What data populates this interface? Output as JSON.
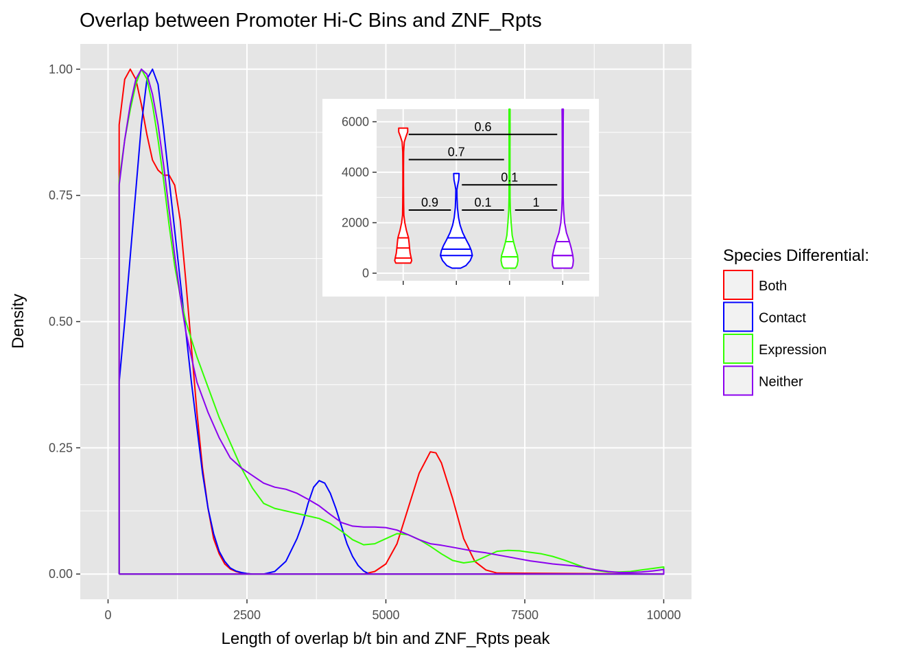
{
  "colors": {
    "Both": "#ff0000",
    "Contact": "#0000ff",
    "Expression": "#33ff00",
    "Neither": "#8b00ee",
    "panel_bg": "#e5e5e5",
    "grid": "#ffffff"
  },
  "chart_data": [
    {
      "type": "line",
      "title": "Overlap between Promoter Hi-C Bins and ZNF_Rpts",
      "xlabel": "Length of overlap b/t bin and ZNF_Rpts peak",
      "ylabel": "Density",
      "xlim": [
        -500,
        10500
      ],
      "ylim": [
        -0.05,
        1.05
      ],
      "x_ticks": [
        0,
        2500,
        5000,
        7500,
        10000
      ],
      "x_tick_labels": [
        "0",
        "2500",
        "5000",
        "7500",
        "10000"
      ],
      "y_ticks": [
        0,
        0.25,
        0.5,
        0.75,
        1.0
      ],
      "y_tick_labels": [
        "0.00",
        "0.25",
        "0.50",
        "0.75",
        "1.00"
      ],
      "grid": true,
      "legend": {
        "title": "Species Differential:",
        "position": "right",
        "entries": [
          "Both",
          "Contact",
          "Expression",
          "Neither"
        ]
      },
      "series": [
        {
          "name": "Both",
          "x": [
            200,
            200,
            300,
            400,
            500,
            600,
            700,
            800,
            900,
            1000,
            1100,
            1200,
            1300,
            1400,
            1500,
            1600,
            1700,
            1800,
            1900,
            2000,
            2100,
            2200,
            2300,
            2400,
            2600,
            2800,
            3000,
            4000,
            4600,
            4800,
            5000,
            5200,
            5400,
            5600,
            5800,
            5900,
            6000,
            6200,
            6400,
            6600,
            6800,
            7000,
            10000,
            10000,
            200
          ],
          "y": [
            0,
            0.89,
            0.98,
            1.0,
            0.98,
            0.93,
            0.87,
            0.82,
            0.8,
            0.79,
            0.79,
            0.77,
            0.7,
            0.58,
            0.45,
            0.32,
            0.21,
            0.13,
            0.07,
            0.04,
            0.02,
            0.01,
            0.005,
            0.002,
            0,
            0,
            0,
            0,
            0,
            0.005,
            0.02,
            0.06,
            0.13,
            0.2,
            0.242,
            0.24,
            0.22,
            0.15,
            0.07,
            0.025,
            0.008,
            0.002,
            0,
            0,
            0
          ]
        },
        {
          "name": "Contact",
          "x": [
            200,
            200,
            300,
            400,
            500,
            600,
            700,
            800,
            900,
            1000,
            1100,
            1200,
            1300,
            1400,
            1500,
            1600,
            1700,
            1800,
            1900,
            2000,
            2100,
            2200,
            2300,
            2400,
            2500,
            2600,
            2800,
            3000,
            3200,
            3400,
            3500,
            3600,
            3700,
            3800,
            3900,
            4000,
            4100,
            4200,
            4300,
            4400,
            4500,
            4600,
            4700,
            10000,
            10000,
            200
          ],
          "y": [
            0,
            0.38,
            0.5,
            0.63,
            0.76,
            0.89,
            0.98,
            1.0,
            0.97,
            0.88,
            0.78,
            0.68,
            0.58,
            0.48,
            0.38,
            0.29,
            0.2,
            0.13,
            0.08,
            0.045,
            0.025,
            0.012,
            0.006,
            0.003,
            0.001,
            0,
            0,
            0.005,
            0.025,
            0.07,
            0.1,
            0.14,
            0.172,
            0.185,
            0.18,
            0.16,
            0.13,
            0.095,
            0.06,
            0.035,
            0.017,
            0.006,
            0,
            0,
            0,
            0
          ]
        },
        {
          "name": "Expression",
          "x": [
            200,
            200,
            300,
            400,
            500,
            600,
            700,
            800,
            900,
            1000,
            1100,
            1200,
            1300,
            1400,
            1600,
            1800,
            2000,
            2200,
            2400,
            2600,
            2800,
            3000,
            3200,
            3400,
            3600,
            3800,
            4000,
            4200,
            4400,
            4600,
            4800,
            5000,
            5200,
            5400,
            5600,
            5800,
            6000,
            6200,
            6400,
            6600,
            6800,
            7000,
            7200,
            7400,
            7600,
            7800,
            8000,
            8200,
            8400,
            8600,
            8800,
            9000,
            9200,
            9400,
            9600,
            9800,
            10000,
            10000,
            200
          ],
          "y": [
            0,
            0.78,
            0.86,
            0.92,
            0.97,
            1.0,
            0.98,
            0.93,
            0.86,
            0.78,
            0.69,
            0.61,
            0.55,
            0.5,
            0.43,
            0.37,
            0.31,
            0.26,
            0.21,
            0.17,
            0.14,
            0.13,
            0.125,
            0.12,
            0.115,
            0.11,
            0.1,
            0.085,
            0.068,
            0.058,
            0.06,
            0.07,
            0.08,
            0.078,
            0.068,
            0.055,
            0.04,
            0.027,
            0.022,
            0.025,
            0.035,
            0.045,
            0.047,
            0.046,
            0.043,
            0.04,
            0.035,
            0.028,
            0.02,
            0.012,
            0.007,
            0.004,
            0.004,
            0.005,
            0.008,
            0.011,
            0.014,
            0,
            0
          ]
        },
        {
          "name": "Neither",
          "x": [
            200,
            200,
            300,
            400,
            500,
            600,
            700,
            800,
            900,
            1000,
            1100,
            1200,
            1300,
            1400,
            1500,
            1600,
            1800,
            2000,
            2200,
            2400,
            2600,
            2800,
            3000,
            3200,
            3400,
            3600,
            3800,
            4000,
            4200,
            4400,
            4600,
            4800,
            5000,
            5200,
            5400,
            5600,
            5800,
            6000,
            6200,
            6400,
            6600,
            6800,
            7000,
            7200,
            7400,
            7600,
            7800,
            8000,
            8200,
            8400,
            8600,
            8800,
            9000,
            9200,
            9400,
            9600,
            9800,
            10000,
            10000,
            200
          ],
          "y": [
            0,
            0.77,
            0.86,
            0.93,
            0.98,
            1.0,
            0.99,
            0.95,
            0.89,
            0.81,
            0.72,
            0.63,
            0.55,
            0.48,
            0.43,
            0.38,
            0.32,
            0.27,
            0.23,
            0.21,
            0.195,
            0.18,
            0.172,
            0.168,
            0.16,
            0.148,
            0.135,
            0.118,
            0.102,
            0.095,
            0.093,
            0.093,
            0.092,
            0.087,
            0.078,
            0.068,
            0.06,
            0.057,
            0.053,
            0.049,
            0.045,
            0.042,
            0.038,
            0.034,
            0.03,
            0.026,
            0.023,
            0.02,
            0.018,
            0.016,
            0.012,
            0.008,
            0.005,
            0.003,
            0.003,
            0.004,
            0.006,
            0.009,
            0,
            0
          ]
        }
      ]
    },
    {
      "type": "violin",
      "categories": [
        "Both",
        "Contact",
        "Expression",
        "Neither"
      ],
      "ylim": [
        -300,
        6500
      ],
      "y_ticks": [
        0,
        2000,
        4000,
        6000
      ],
      "y_tick_labels": [
        "0",
        "2000",
        "4000",
        "6000"
      ],
      "grid": true,
      "violins": [
        {
          "name": "Both",
          "range": [
            400,
            5750
          ],
          "quantiles": [
            600,
            1000,
            1400
          ],
          "profile": [
            [
              400,
              0.14
            ],
            [
              500,
              0.16
            ],
            [
              600,
              0.15
            ],
            [
              800,
              0.13
            ],
            [
              1000,
              0.12
            ],
            [
              1200,
              0.11
            ],
            [
              1400,
              0.1
            ],
            [
              1700,
              0.06
            ],
            [
              2000,
              0.03
            ],
            [
              2300,
              0.012
            ],
            [
              2800,
              0.008
            ],
            [
              3500,
              0.006
            ],
            [
              4200,
              0.006
            ],
            [
              4800,
              0.008
            ],
            [
              5200,
              0.02
            ],
            [
              5400,
              0.05
            ],
            [
              5600,
              0.085
            ],
            [
              5750,
              0.085
            ]
          ]
        },
        {
          "name": "Contact",
          "range": [
            200,
            3950
          ],
          "quantiles": [
            700,
            950,
            1400
          ],
          "profile": [
            [
              200,
              0.08
            ],
            [
              300,
              0.18
            ],
            [
              500,
              0.26
            ],
            [
              700,
              0.3
            ],
            [
              900,
              0.28
            ],
            [
              1100,
              0.24
            ],
            [
              1300,
              0.19
            ],
            [
              1600,
              0.12
            ],
            [
              1900,
              0.07
            ],
            [
              2200,
              0.04
            ],
            [
              2600,
              0.02
            ],
            [
              3000,
              0.012
            ],
            [
              3300,
              0.01
            ],
            [
              3500,
              0.025
            ],
            [
              3700,
              0.045
            ],
            [
              3900,
              0.05
            ],
            [
              3950,
              0.05
            ]
          ]
        },
        {
          "name": "Expression",
          "range": [
            200,
            6500
          ],
          "quantiles": [
            650,
            650,
            1250
          ],
          "profile": [
            [
              200,
              0.11
            ],
            [
              300,
              0.14
            ],
            [
              500,
              0.16
            ],
            [
              700,
              0.15
            ],
            [
              900,
              0.12
            ],
            [
              1200,
              0.08
            ],
            [
              1500,
              0.05
            ],
            [
              2000,
              0.03
            ],
            [
              2500,
              0.015
            ],
            [
              3000,
              0.01
            ],
            [
              4000,
              0.008
            ],
            [
              5000,
              0.008
            ],
            [
              5800,
              0.01
            ],
            [
              6500,
              0.01
            ]
          ]
        },
        {
          "name": "Neither",
          "range": [
            200,
            6500
          ],
          "quantiles": [
            700,
            700,
            1250
          ],
          "profile": [
            [
              200,
              0.17
            ],
            [
              300,
              0.19
            ],
            [
              500,
              0.2
            ],
            [
              700,
              0.19
            ],
            [
              1000,
              0.16
            ],
            [
              1300,
              0.12
            ],
            [
              1600,
              0.07
            ],
            [
              2000,
              0.035
            ],
            [
              2500,
              0.018
            ],
            [
              3000,
              0.01
            ],
            [
              4000,
              0.008
            ],
            [
              5000,
              0.008
            ],
            [
              6000,
              0.01
            ],
            [
              6500,
              0.012
            ]
          ]
        }
      ],
      "comparisons": [
        {
          "from": "Both",
          "to": "Neither",
          "y": 5500,
          "label": "0.6"
        },
        {
          "from": "Both",
          "to": "Expression",
          "y": 4500,
          "label": "0.7"
        },
        {
          "from": "Contact",
          "to": "Neither",
          "y": 3500,
          "label": "0.1"
        },
        {
          "from": "Both",
          "to": "Contact",
          "y": 2500,
          "label": "0.9"
        },
        {
          "from": "Contact",
          "to": "Expression",
          "y": 2500,
          "label": "0.1"
        },
        {
          "from": "Expression",
          "to": "Neither",
          "y": 2500,
          "label": "1"
        }
      ]
    }
  ]
}
